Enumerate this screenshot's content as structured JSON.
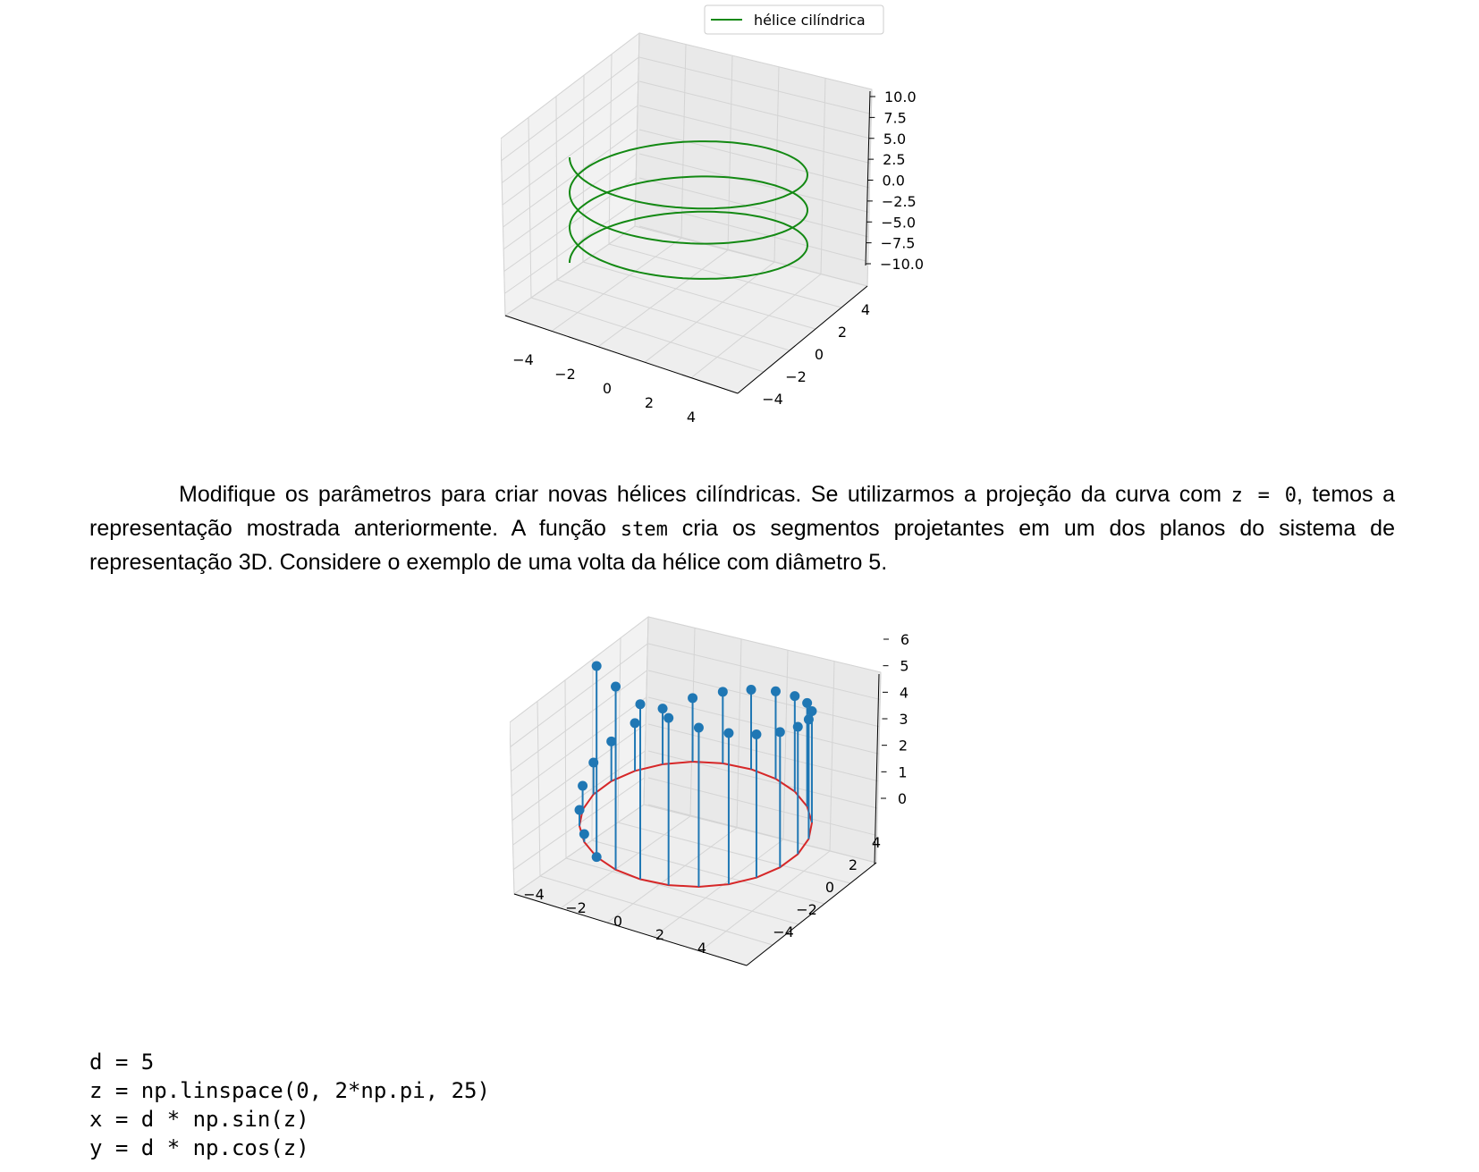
{
  "figure1": {
    "legend_label": "hélice cilíndrica",
    "colors": {
      "curve": "#138913",
      "pane": "#f2f2f2",
      "grid": "#d0d0d0"
    },
    "z_ticks": [
      "10.0",
      "7.5",
      "5.0",
      "2.5",
      "0.0",
      "−2.5",
      "−5.0",
      "−7.5",
      "−10.0"
    ],
    "x_ticks": [
      "−4",
      "−2",
      "0",
      "2",
      "4"
    ],
    "y_ticks": [
      "4",
      "2",
      "0",
      "−2",
      "−4"
    ]
  },
  "paragraph": {
    "part1": "Modifique os parâmetros para criar novas hélices cilíndricas. Se utilizarmos a projeção da curva com ",
    "code1": "z = 0",
    "part2": ", temos a representação mostrada anteriormente. A função ",
    "code2": "stem",
    "part3": " cria os segmentos projetantes em um dos planos do sistema de representação 3D. Considere o exemplo de uma volta da hélice com diâmetro 5."
  },
  "figure2": {
    "colors": {
      "stem": "#1f77b4",
      "circle": "#d62728",
      "pane": "#f2f2f2",
      "grid": "#d0d0d0"
    },
    "z_ticks": [
      "6",
      "5",
      "4",
      "3",
      "2",
      "1",
      "0"
    ],
    "x_ticks": [
      "−4",
      "−2",
      "0",
      "2",
      "4"
    ],
    "y_ticks": [
      "4",
      "2",
      "0",
      "−2",
      "−4"
    ]
  },
  "code": {
    "lines": [
      "d = 5",
      "z = np.linspace(0, 2*np.pi, 25)",
      "x = d * np.sin(z)",
      "y = d * np.cos(z)"
    ]
  },
  "chart_data": [
    {
      "type": "line",
      "projection": "3d",
      "series": [
        {
          "name": "hélice cilíndrica",
          "curve": "x = 5*cos(t), y = 5*sin(t), z from -10 to 10, three turns"
        }
      ],
      "xlim": [
        -5,
        5
      ],
      "ylim": [
        -5,
        5
      ],
      "zlim": [
        -10,
        10
      ],
      "grid": true,
      "legend": "top-center"
    },
    {
      "type": "scatter",
      "projection": "3d",
      "style": "stem",
      "x_formula": "x = 5*sin(z)",
      "y_formula": "y = 5*cos(z)",
      "z": [
        0,
        0.2618,
        0.5236,
        0.7854,
        1.0472,
        1.309,
        1.5708,
        1.8326,
        2.0944,
        2.3562,
        2.618,
        2.8798,
        3.1416,
        3.4034,
        3.6652,
        3.927,
        4.1888,
        4.4506,
        4.7124,
        4.9742,
        5.236,
        5.4978,
        5.7596,
        6.0214,
        6.2832
      ],
      "base_circle": "z = 0",
      "xlim": [
        -5,
        5
      ],
      "ylim": [
        -5,
        5
      ],
      "zlim": [
        0,
        6.3
      ],
      "grid": true
    }
  ]
}
